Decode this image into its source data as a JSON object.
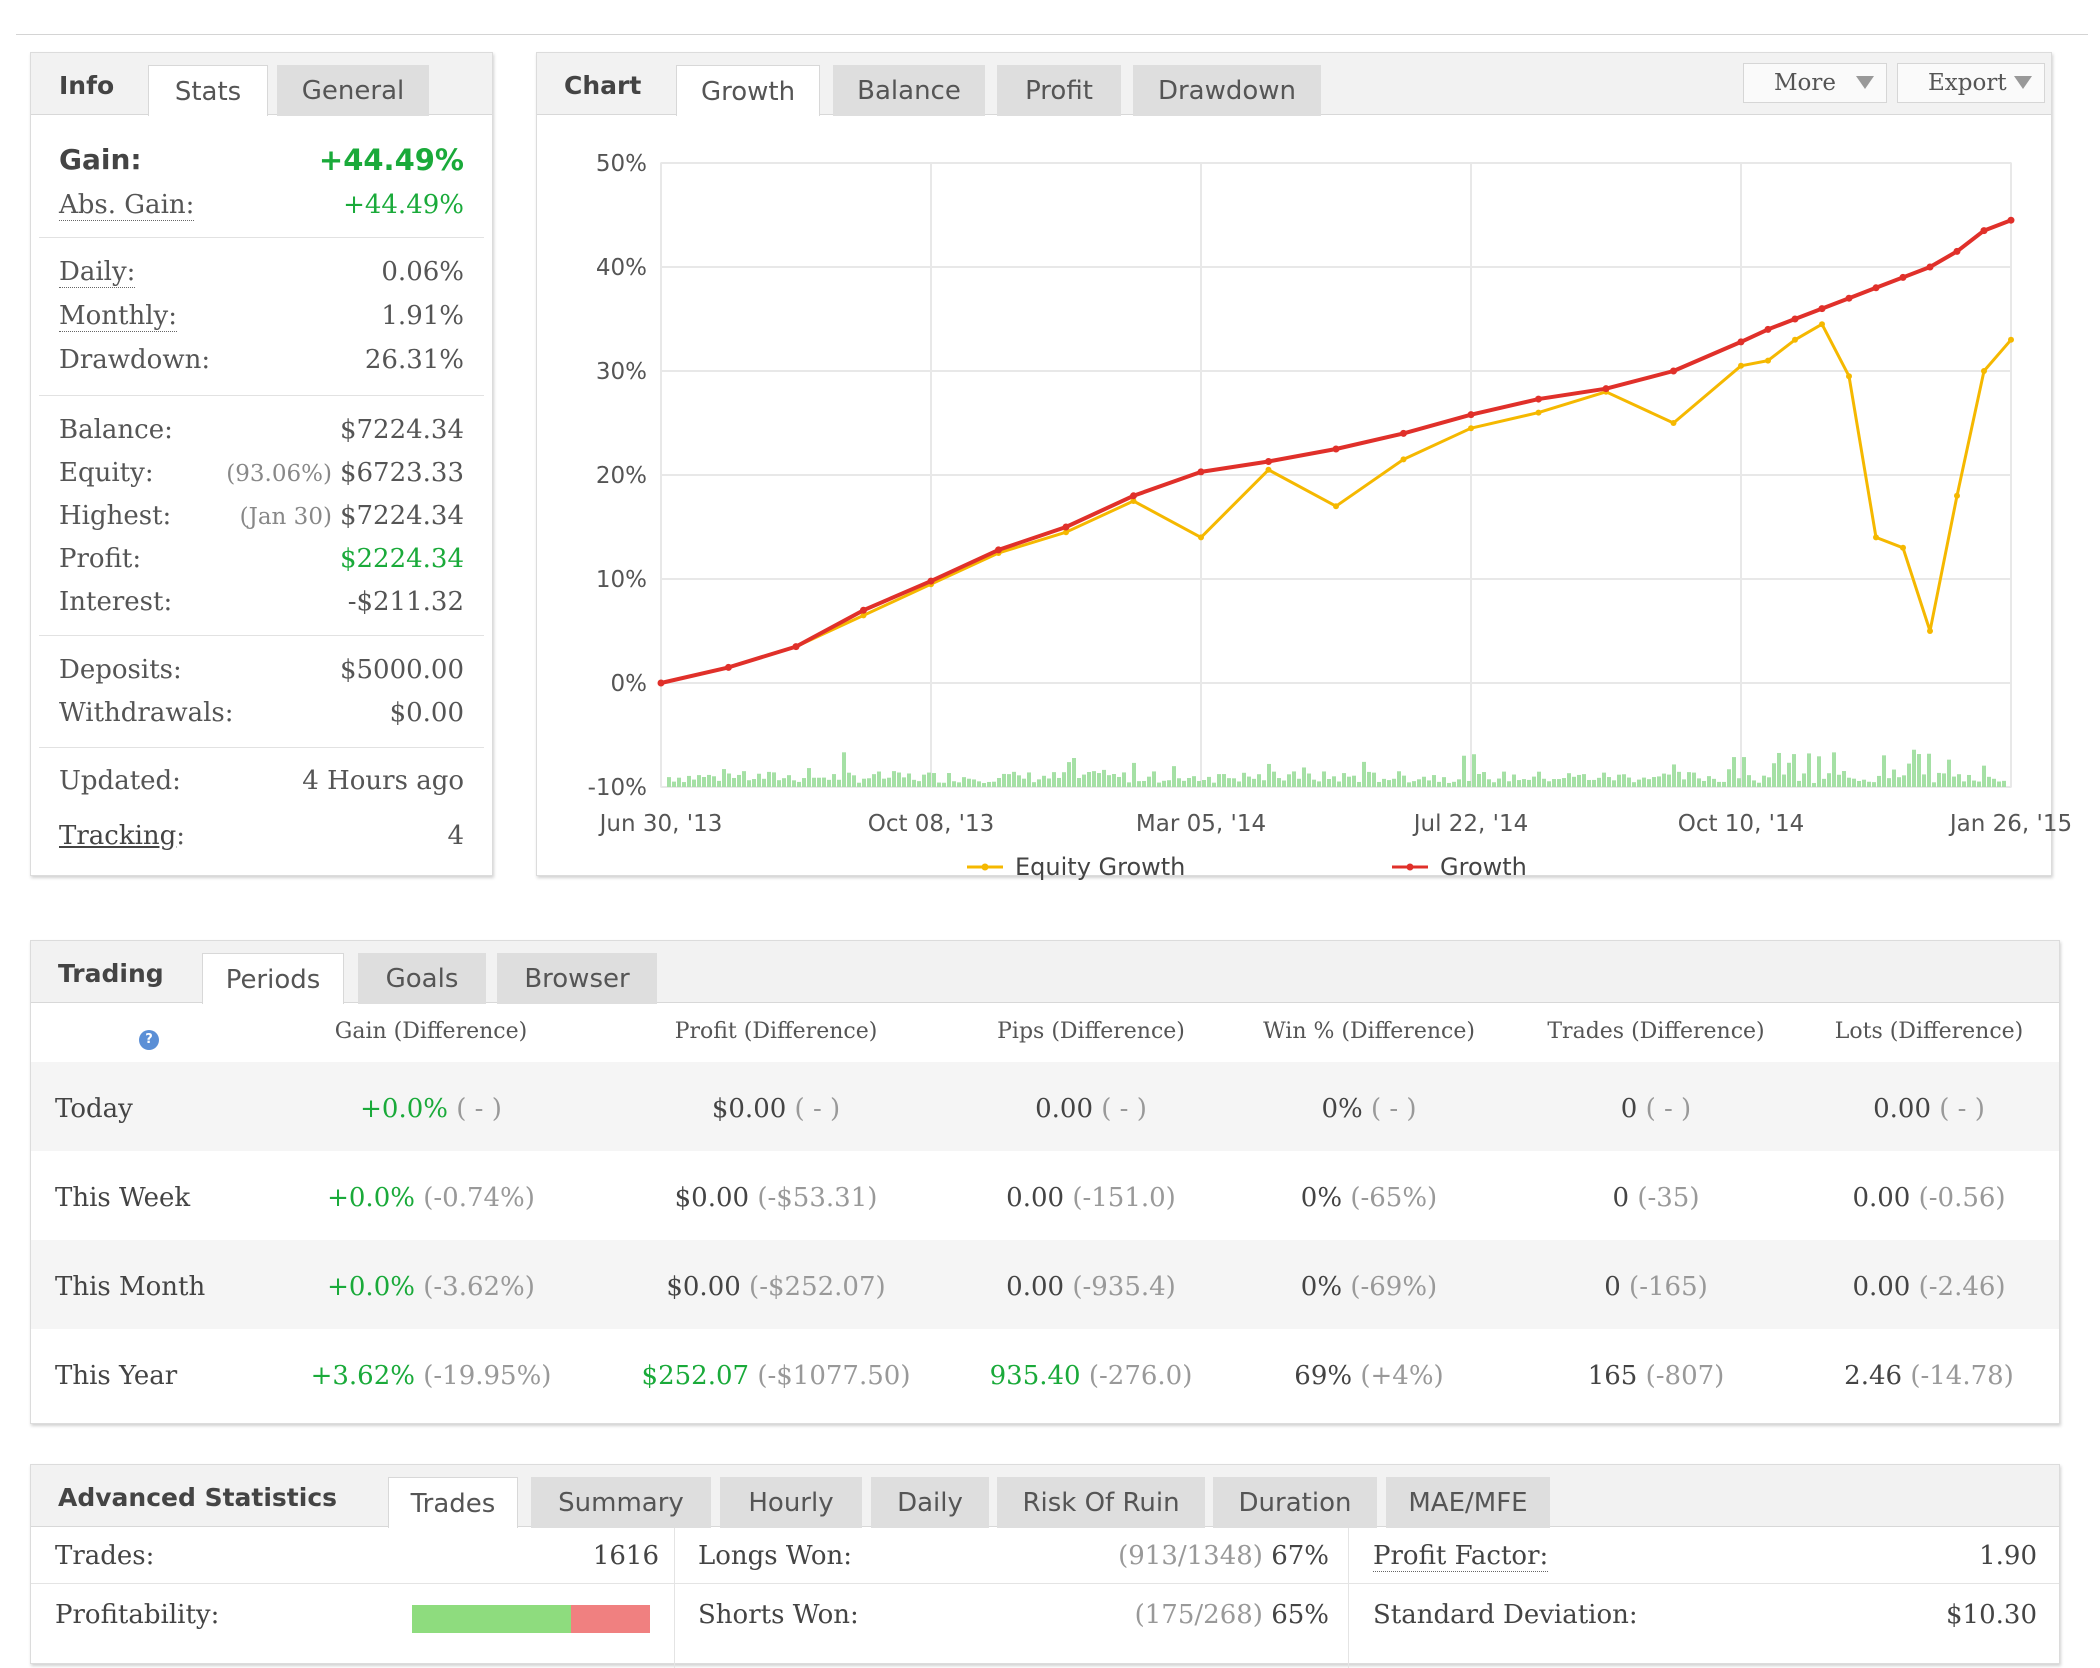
{
  "info": {
    "tabs": [
      {
        "label": "Info"
      },
      {
        "label": "Stats"
      },
      {
        "label": "General"
      }
    ],
    "gain": {
      "label": "Gain:",
      "value": "+44.49%"
    },
    "abs_gain": {
      "label": "Abs. Gain:",
      "value": "+44.49%"
    },
    "daily": {
      "label": "Daily:",
      "value": "0.06%"
    },
    "monthly": {
      "label": "Monthly:",
      "value": "1.91%"
    },
    "drawdown": {
      "label": "Drawdown:",
      "value": "26.31%"
    },
    "balance": {
      "label": "Balance:",
      "value": "$7224.34"
    },
    "equity": {
      "label": "Equity:",
      "sub": "(93.06%)",
      "value": "$6723.33"
    },
    "highest": {
      "label": "Highest:",
      "sub": "(Jan 30)",
      "value": "$7224.34"
    },
    "profit": {
      "label": "Profit:",
      "value": "$2224.34"
    },
    "interest": {
      "label": "Interest:",
      "value": "-$211.32"
    },
    "deposits": {
      "label": "Deposits:",
      "value": "$5000.00"
    },
    "withdrawals": {
      "label": "Withdrawals:",
      "value": "$0.00"
    },
    "updated": {
      "label": "Updated:",
      "value": "4 Hours ago"
    },
    "tracking": {
      "label": "Tracking",
      "colon": ":",
      "value": "4"
    }
  },
  "chart_panel": {
    "tabs": [
      {
        "label": "Chart"
      },
      {
        "label": "Growth"
      },
      {
        "label": "Balance"
      },
      {
        "label": "Profit"
      },
      {
        "label": "Drawdown"
      }
    ],
    "more_label": "More",
    "export_label": "Export",
    "colors": {
      "equity": "#f5b800",
      "growth": "#e0302a",
      "bars": "#a5e0a5",
      "grid": "#e8e8e8"
    }
  },
  "chart_data": {
    "type": "line",
    "title": "",
    "xlabel": "",
    "ylabel": "",
    "ylim": [
      -10,
      50
    ],
    "yticks": [
      "50%",
      "40%",
      "30%",
      "20%",
      "10%",
      "0%",
      "-10%"
    ],
    "xticks": [
      "Jun 30, '13",
      "Oct 08, '13",
      "Mar 05, '14",
      "Jul 22, '14",
      "Oct 10, '14",
      "Jan 26, '15"
    ],
    "x": [
      0,
      5,
      10,
      15,
      20,
      25,
      30,
      35,
      40,
      45,
      50,
      55,
      60,
      65,
      70,
      75,
      80,
      82,
      84,
      86,
      88,
      90,
      92,
      94,
      96,
      98,
      100
    ],
    "series": [
      {
        "name": "Equity Growth",
        "values": [
          0,
          1.5,
          3.5,
          6.5,
          9.5,
          12.5,
          14.5,
          17.5,
          14.0,
          20.5,
          17.0,
          21.5,
          24.5,
          26.0,
          28.0,
          25.0,
          30.5,
          31.0,
          33.0,
          34.5,
          29.5,
          14.0,
          13.0,
          5.0,
          18.0,
          30.0,
          33.0
        ]
      },
      {
        "name": "Growth",
        "values": [
          0,
          1.5,
          3.5,
          7.0,
          9.8,
          12.8,
          15.0,
          18.0,
          20.3,
          21.3,
          22.5,
          24.0,
          25.8,
          27.3,
          28.3,
          30.0,
          32.8,
          34.0,
          35.0,
          36.0,
          37.0,
          38.0,
          39.0,
          40.0,
          41.5,
          43.5,
          44.5
        ]
      }
    ],
    "legend": "bottom"
  },
  "trading": {
    "tabs": [
      {
        "label": "Trading"
      },
      {
        "label": "Periods"
      },
      {
        "label": "Goals"
      },
      {
        "label": "Browser"
      }
    ],
    "help_icon": "?",
    "columns": [
      "Gain (Difference)",
      "Profit (Difference)",
      "Pips (Difference)",
      "Win % (Difference)",
      "Trades (Difference)",
      "Lots (Difference)"
    ],
    "rows": [
      {
        "period": "Today",
        "cells": [
          {
            "value": "+0.0%",
            "diff": "( - )",
            "green": true
          },
          {
            "value": "$0.00",
            "diff": "( - )",
            "green": false
          },
          {
            "value": "0.00",
            "diff": "( - )",
            "green": false
          },
          {
            "value": "0%",
            "diff": "( - )",
            "green": false
          },
          {
            "value": "0",
            "diff": "( - )",
            "green": false
          },
          {
            "value": "0.00",
            "diff": "( - )",
            "green": false
          }
        ]
      },
      {
        "period": "This Week",
        "cells": [
          {
            "value": "+0.0%",
            "diff": "(-0.74%)",
            "green": true
          },
          {
            "value": "$0.00",
            "diff": "(-$53.31)",
            "green": false
          },
          {
            "value": "0.00",
            "diff": "(-151.0)",
            "green": false
          },
          {
            "value": "0%",
            "diff": "(-65%)",
            "green": false
          },
          {
            "value": "0",
            "diff": "(-35)",
            "green": false
          },
          {
            "value": "0.00",
            "diff": "(-0.56)",
            "green": false
          }
        ]
      },
      {
        "period": "This Month",
        "cells": [
          {
            "value": "+0.0%",
            "diff": "(-3.62%)",
            "green": true
          },
          {
            "value": "$0.00",
            "diff": "(-$252.07)",
            "green": false
          },
          {
            "value": "0.00",
            "diff": "(-935.4)",
            "green": false
          },
          {
            "value": "0%",
            "diff": "(-69%)",
            "green": false
          },
          {
            "value": "0",
            "diff": "(-165)",
            "green": false
          },
          {
            "value": "0.00",
            "diff": "(-2.46)",
            "green": false
          }
        ]
      },
      {
        "period": "This Year",
        "cells": [
          {
            "value": "+3.62%",
            "diff": "(-19.95%)",
            "green": true
          },
          {
            "value": "$252.07",
            "diff": "(-$1077.50)",
            "green": true
          },
          {
            "value": "935.40",
            "diff": "(-276.0)",
            "green": true
          },
          {
            "value": "69%",
            "diff": "(+4%)",
            "green": false
          },
          {
            "value": "165",
            "diff": "(-807)",
            "green": false
          },
          {
            "value": "2.46",
            "diff": "(-14.78)",
            "green": false
          }
        ]
      }
    ]
  },
  "advanced": {
    "tabs": [
      {
        "label": "Advanced Statistics"
      },
      {
        "label": "Trades"
      },
      {
        "label": "Summary"
      },
      {
        "label": "Hourly"
      },
      {
        "label": "Daily"
      },
      {
        "label": "Risk Of Ruin"
      },
      {
        "label": "Duration"
      },
      {
        "label": "MAE/MFE"
      }
    ],
    "trades": {
      "label": "Trades:",
      "value": "1616"
    },
    "profitability": {
      "label": "Profitability:",
      "won_fraction": 0.67
    },
    "longs_won": {
      "label": "Longs Won:",
      "sub": "(913/1348)",
      "value": "67%"
    },
    "shorts_won": {
      "label": "Shorts Won:",
      "sub": "(175/268)",
      "value": "65%"
    },
    "profit_factor": {
      "label": "Profit Factor:",
      "value": "1.90"
    },
    "std_dev": {
      "label": "Standard Deviation:",
      "value": "$10.30"
    }
  }
}
